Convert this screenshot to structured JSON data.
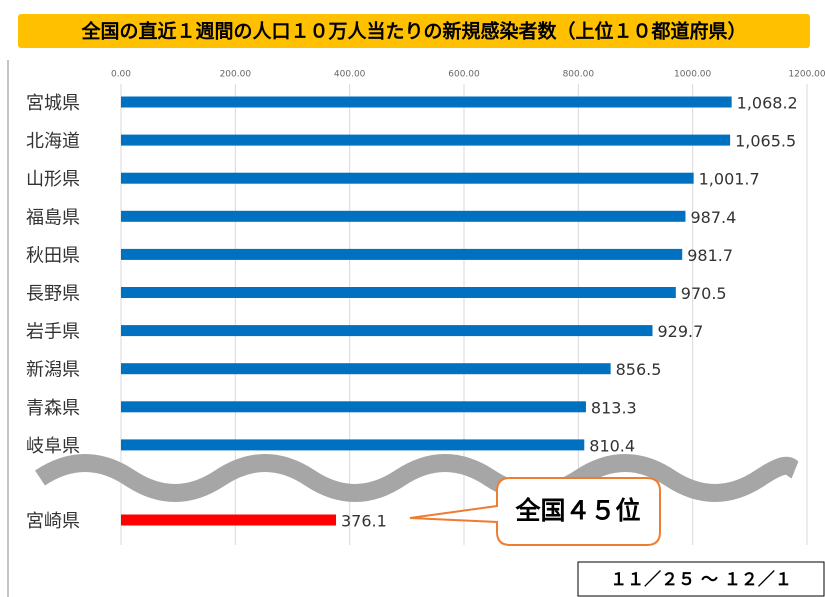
{
  "chart_data": {
    "type": "bar",
    "orientation": "horizontal",
    "title": "全国の直近１週間の人口１０万人当たりの新規感染者数（上位１０都道府県）",
    "categories": [
      "宮城県",
      "北海道",
      "山形県",
      "福島県",
      "秋田県",
      "長野県",
      "岩手県",
      "新潟県",
      "青森県",
      "岐阜県",
      "宮崎県"
    ],
    "values": [
      1068.2,
      1065.5,
      1001.7,
      987.4,
      981.7,
      970.5,
      929.7,
      856.5,
      813.3,
      810.4,
      376.1
    ],
    "value_labels": [
      "1,068.2",
      "1,065.5",
      "1,001.7",
      "987.4",
      "981.7",
      "970.5",
      "929.7",
      "856.5",
      "813.3",
      "810.4",
      "376.1"
    ],
    "colors": [
      "#0070c0",
      "#0070c0",
      "#0070c0",
      "#0070c0",
      "#0070c0",
      "#0070c0",
      "#0070c0",
      "#0070c0",
      "#0070c0",
      "#0070c0",
      "#ff0000"
    ],
    "xlim": [
      0,
      1200
    ],
    "xticks": [
      {
        "value": 0,
        "label": "0.00"
      },
      {
        "value": 200,
        "label": "200.00"
      },
      {
        "value": 400,
        "label": "400.00"
      },
      {
        "value": 600,
        "label": "600.00"
      },
      {
        "value": 800,
        "label": "800.00"
      },
      {
        "value": 1000,
        "label": "1000.00"
      },
      {
        "value": 1200,
        "label": "1200.00"
      }
    ],
    "grid": true,
    "annotation": "全国４５位",
    "date_range": "１１／２５ ～ １２／１"
  }
}
